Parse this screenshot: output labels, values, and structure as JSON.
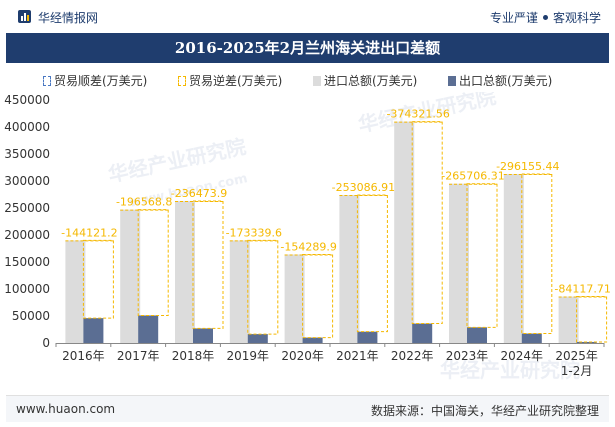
{
  "header": {
    "brand": "华经情报网",
    "tagline_left": "专业严谨",
    "tagline_right": "客观科学"
  },
  "watermark": {
    "text_cn": "华经产业研究院",
    "text_url": "www.huaon.com"
  },
  "footer": {
    "website": "www.huaon.com",
    "source": "数据来源：中国海关，华经产业研究院整理"
  },
  "colors": {
    "title_bg": "#1f3d6e",
    "import_bar": "#dcdcdc",
    "export_bar": "#5b6e93",
    "balance_line": "#f5b800",
    "trade_surplus": "#4a78c2"
  },
  "chart_data": {
    "type": "bar",
    "title": "2016-2025年2月兰州海关进出口差额",
    "categories": [
      "2016年",
      "2017年",
      "2018年",
      "2019年",
      "2020年",
      "2021年",
      "2022年",
      "2023年",
      "2024年",
      "2025年\n1-2月"
    ],
    "series": [
      {
        "name": "贸易顺差(万美元)",
        "values": [
          null,
          null,
          null,
          null,
          null,
          null,
          null,
          null,
          null,
          null
        ]
      },
      {
        "name": "贸易逆差(万美元)",
        "values": [
          -144121.2,
          -196568.8,
          -236473.9,
          -173339.6,
          -154289.9,
          -253086.91,
          -374321.56,
          -265706.31,
          -296155.44,
          -84117.71
        ],
        "labels": [
          "-144121.2",
          "-196568.8",
          "-236473.9",
          "-173339.6",
          "-154289.9",
          "-253086.91",
          "-374321.56",
          "-265706.31",
          "-296155.44",
          "-84117.71"
        ]
      },
      {
        "name": "进口总额(万美元)",
        "values": [
          190000,
          247000,
          263000,
          190000,
          164000,
          274000,
          410000,
          295000,
          313000,
          86000
        ]
      },
      {
        "name": "出口总额(万美元)",
        "values": [
          46000,
          51000,
          27000,
          16500,
          10000,
          21000,
          36000,
          29000,
          17500,
          1900
        ]
      }
    ],
    "ylim": [
      0,
      450000
    ],
    "yticks": [
      "0",
      "50000",
      "100000",
      "150000",
      "200000",
      "250000",
      "300000",
      "350000",
      "400000",
      "450000"
    ],
    "xlabel": "",
    "ylabel": "",
    "legend_position": "top"
  }
}
